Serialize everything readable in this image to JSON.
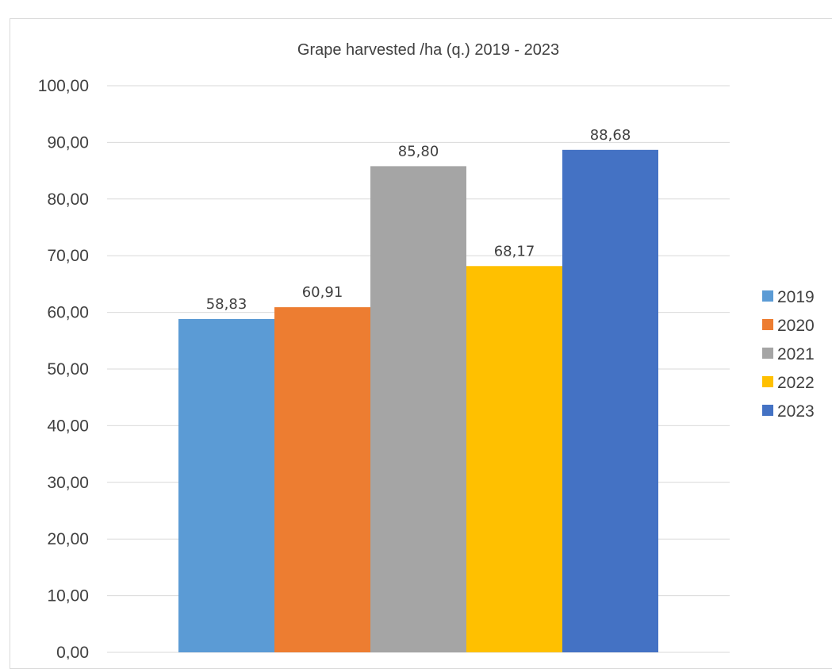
{
  "chart_data": {
    "type": "bar",
    "title": "Grape harvested /ha (q.) 2019 - 2023",
    "xlabel": "",
    "ylabel": "",
    "ylim": [
      0,
      100
    ],
    "y_ticks": [
      "0,00",
      "10,00",
      "20,00",
      "30,00",
      "40,00",
      "50,00",
      "60,00",
      "70,00",
      "80,00",
      "90,00",
      "100,00"
    ],
    "grid": true,
    "legend_position": "right",
    "series": [
      {
        "name": "2019",
        "value": 58.83,
        "label": "58,83",
        "color": "#5B9BD5"
      },
      {
        "name": "2020",
        "value": 60.91,
        "label": "60,91",
        "color": "#ED7D31"
      },
      {
        "name": "2021",
        "value": 85.8,
        "label": "85,80",
        "color": "#A5A5A5"
      },
      {
        "name": "2022",
        "value": 68.17,
        "label": "68,17",
        "color": "#FFC000"
      },
      {
        "name": "2023",
        "value": 88.68,
        "label": "88,68",
        "color": "#4472C4"
      }
    ]
  }
}
